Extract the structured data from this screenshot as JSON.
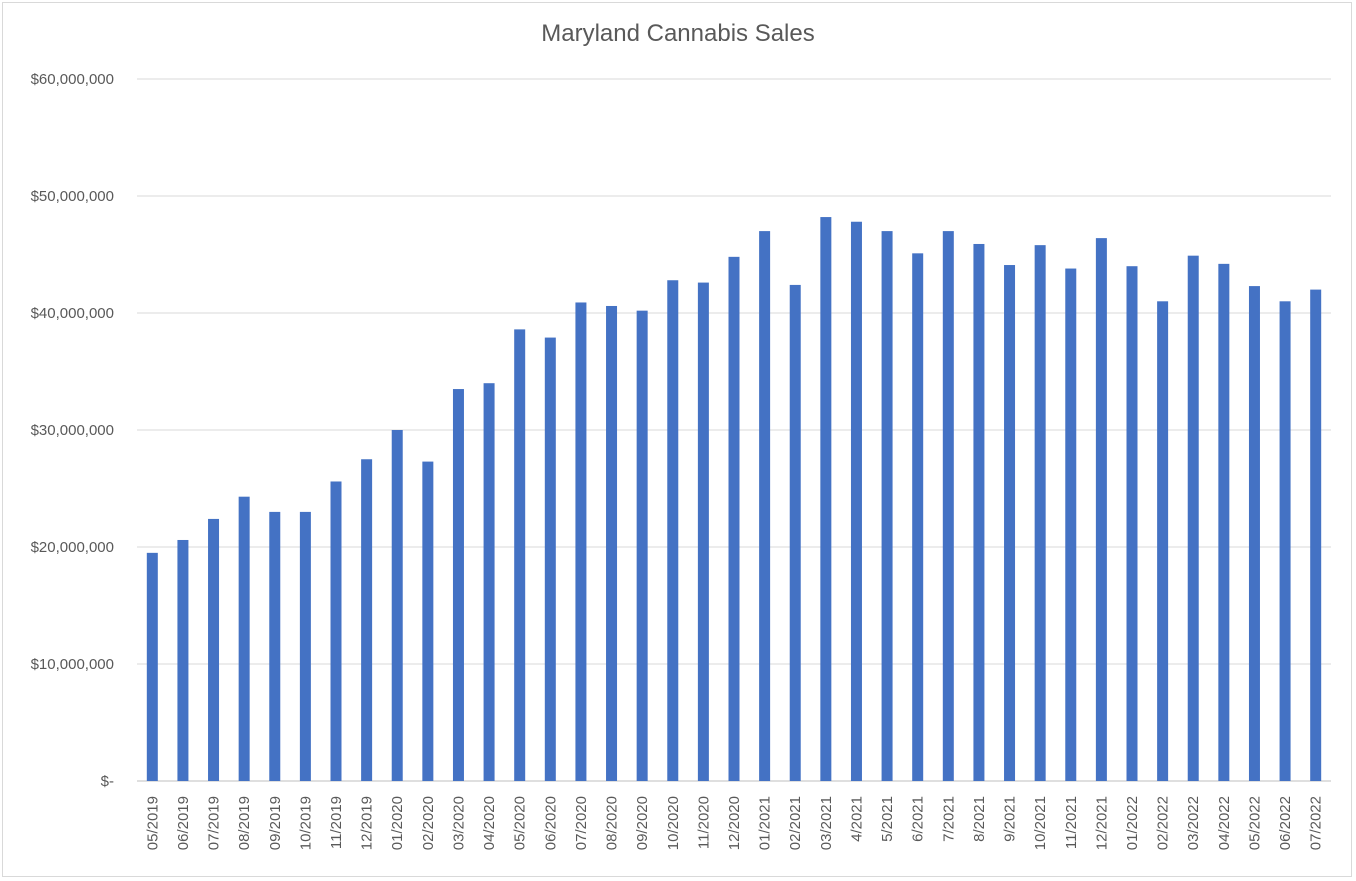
{
  "chart_data": {
    "type": "bar",
    "title": "Maryland Cannabis Sales",
    "xlabel": "",
    "ylabel": "",
    "ylim": [
      0,
      60000000
    ],
    "yticks": [
      0,
      10000000,
      20000000,
      30000000,
      40000000,
      50000000,
      60000000
    ],
    "ytick_labels": [
      "$-",
      "$10,000,000",
      "$20,000,000",
      "$30,000,000",
      "$40,000,000",
      "$50,000,000",
      "$60,000,000"
    ],
    "grid": true,
    "legend": "none",
    "color": "#4472c4",
    "categories": [
      "05/2019",
      "06/2019",
      "07/2019",
      "08/2019",
      "09/2019",
      "10/2019",
      "11/2019",
      "12/2019",
      "01/2020",
      "02/2020",
      "03/2020",
      "04/2020",
      "05/2020",
      "06/2020",
      "07/2020",
      "08/2020",
      "09/2020",
      "10/2020",
      "11/2020",
      "12/2020",
      "01/2021",
      "02/2021",
      "03/2021",
      "4/2021",
      "5/2021",
      "6/2021",
      "7/2021",
      "8/2021",
      "9/2021",
      "10/2021",
      "11/2021",
      "12/2021",
      "01/2022",
      "02/2022",
      "03/2022",
      "04/2022",
      "05/2022",
      "06/2022",
      "07/2022"
    ],
    "values": [
      19500000,
      20600000,
      22400000,
      24300000,
      23000000,
      23000000,
      25600000,
      27500000,
      30000000,
      27300000,
      33500000,
      34000000,
      38600000,
      37900000,
      40900000,
      40600000,
      40200000,
      42800000,
      42600000,
      44800000,
      47000000,
      42400000,
      48200000,
      47800000,
      47000000,
      45100000,
      47000000,
      45900000,
      44100000,
      45800000,
      43800000,
      46400000,
      44000000,
      41000000,
      44900000,
      44200000,
      42300000,
      41000000,
      42000000
    ]
  }
}
